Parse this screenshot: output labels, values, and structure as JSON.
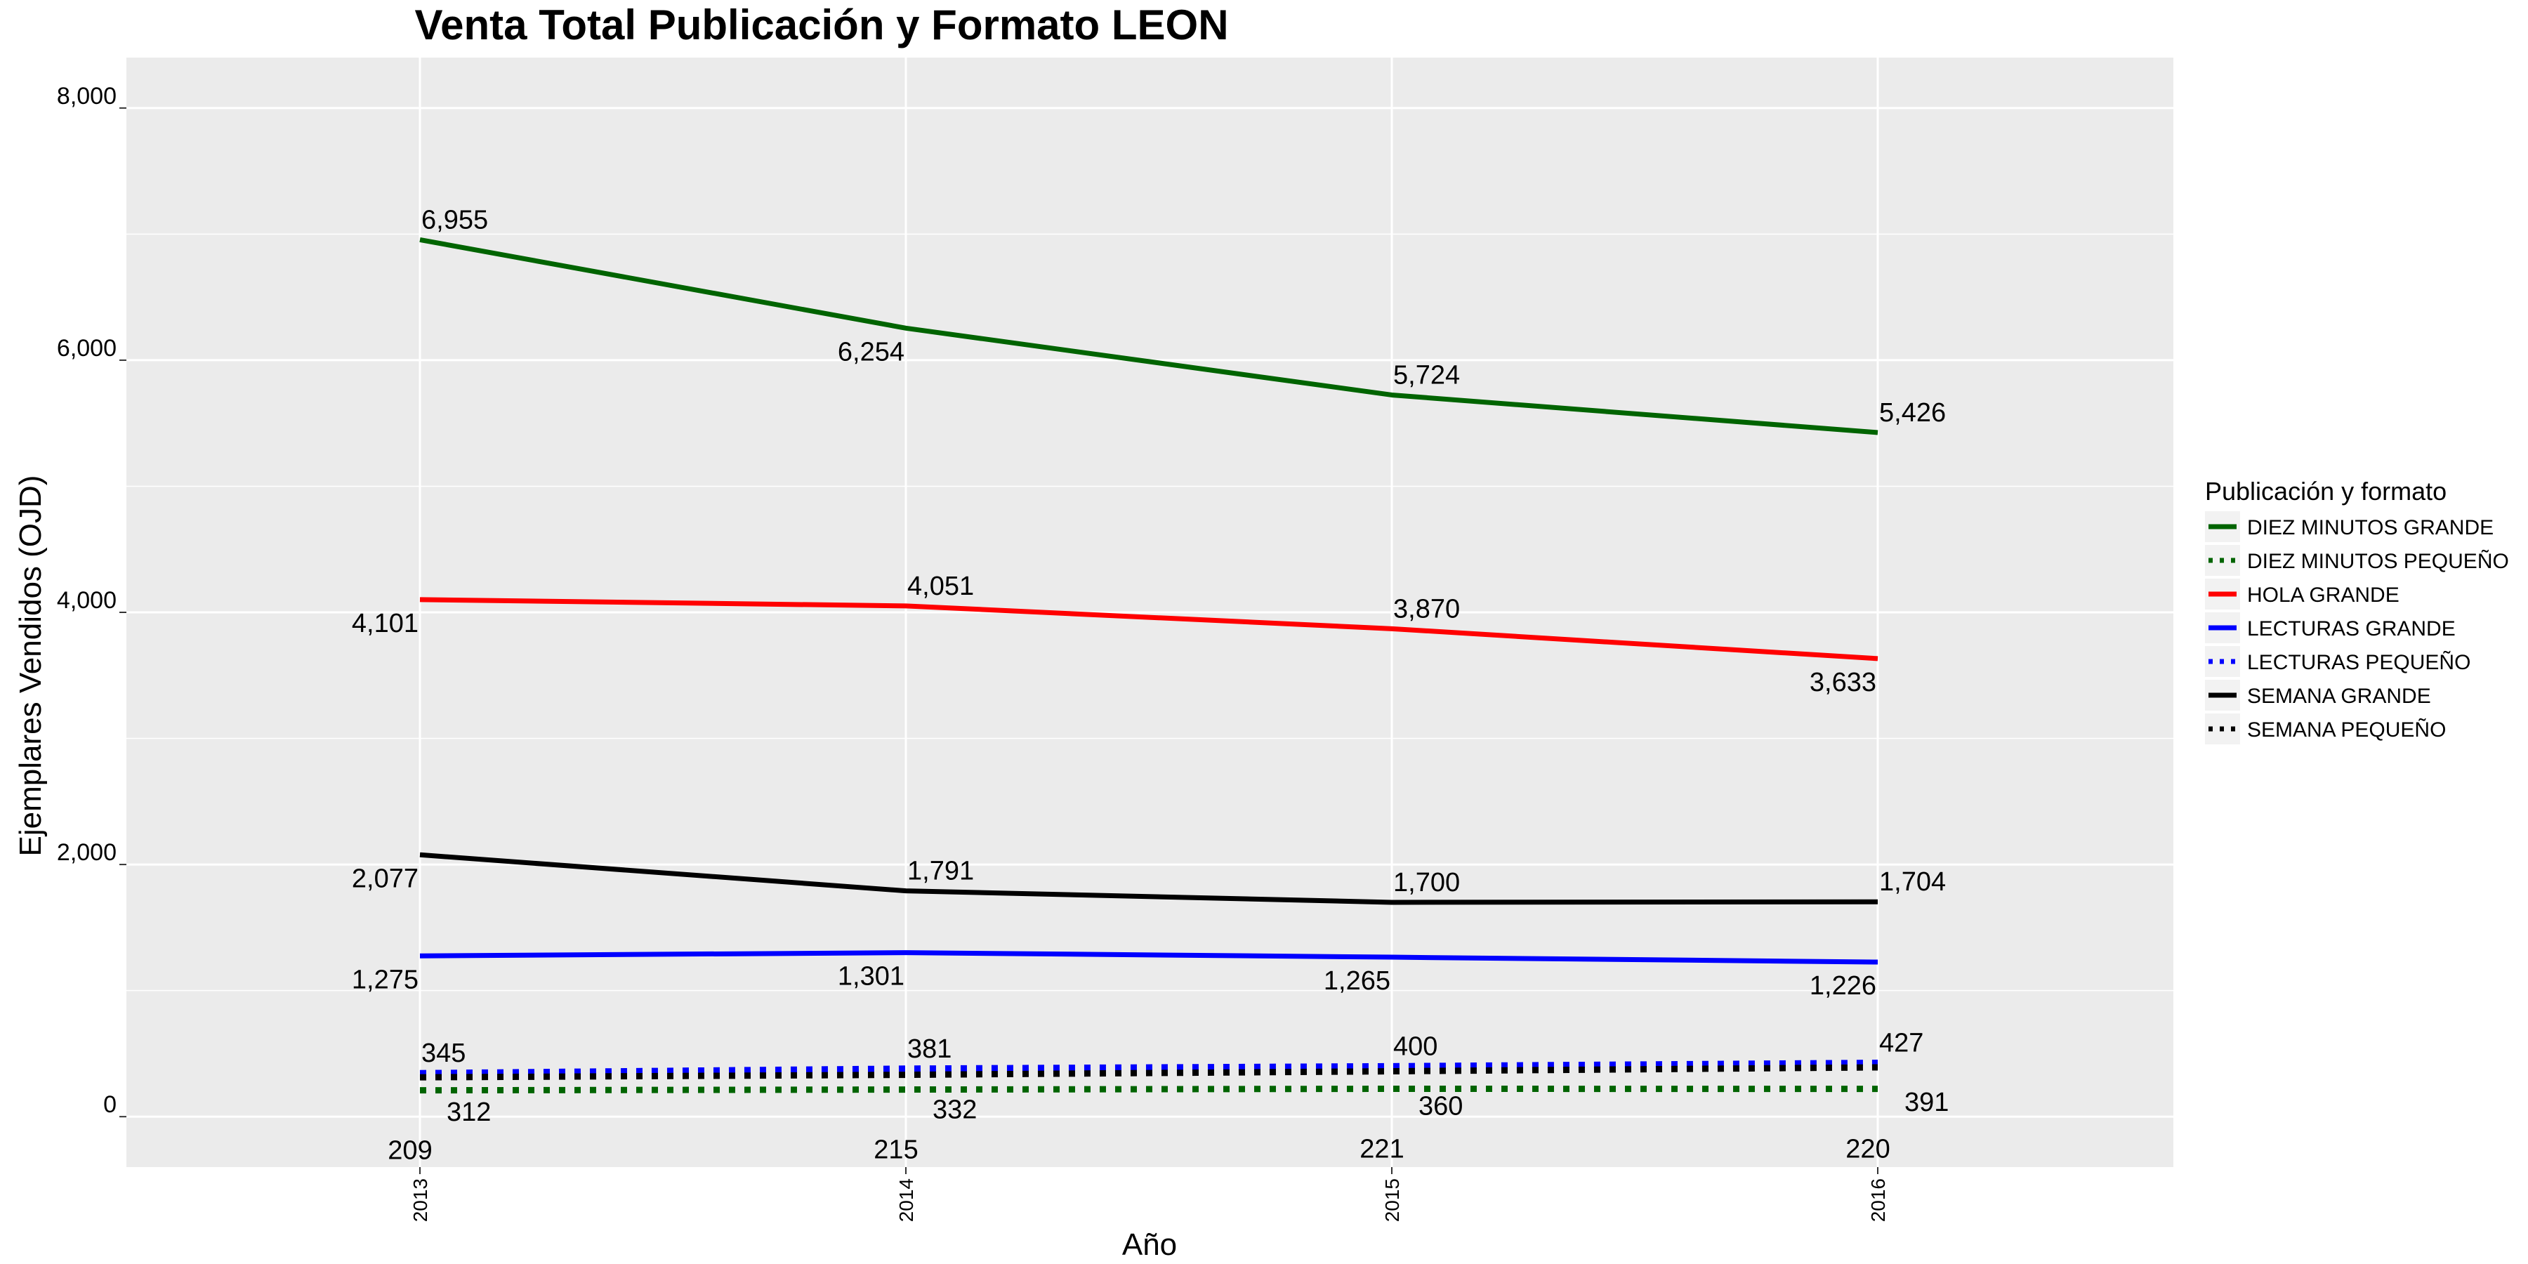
{
  "chart_data": {
    "type": "line",
    "title": "Venta Total Publicación y Formato  LEON",
    "xlabel": "Año",
    "ylabel": "Ejemplares Vendidos (OJD)",
    "x": [
      "2013",
      "2014",
      "2015",
      "2016"
    ],
    "ylim": [
      -400,
      8400
    ],
    "y_ticks": [
      0,
      2000,
      4000,
      6000,
      8000
    ],
    "y_tick_labels": [
      "0",
      "2,000",
      "4,000",
      "6,000",
      "8,000"
    ],
    "grid": true,
    "legend_title": "Publicación y formato",
    "legend_position": "right",
    "series": [
      {
        "name": "DIEZ MINUTOS GRANDE",
        "color": "#006400",
        "style": "solid",
        "values": [
          6955,
          6254,
          5724,
          5426
        ],
        "labels": [
          "6,955",
          "6,254",
          "5,724",
          "5,426"
        ],
        "label_side": [
          "above",
          "below",
          "above",
          "above"
        ]
      },
      {
        "name": "DIEZ MINUTOS PEQUEÑO",
        "color": "#006400",
        "style": "dotted",
        "values": [
          209,
          215,
          221,
          220
        ],
        "labels": [
          "209",
          "215",
          "221",
          "220"
        ],
        "label_side": [
          "below",
          "below",
          "below",
          "below"
        ]
      },
      {
        "name": "HOLA GRANDE",
        "color": "#ff0000",
        "style": "solid",
        "values": [
          4101,
          4051,
          3870,
          3633
        ],
        "labels": [
          "4,101",
          "4,051",
          "3,870",
          "3,633"
        ],
        "label_side": [
          "below",
          "above",
          "above",
          "below"
        ]
      },
      {
        "name": "LECTURAS GRANDE",
        "color": "#0000ff",
        "style": "solid",
        "values": [
          1275,
          1301,
          1265,
          1226
        ],
        "labels": [
          "1,275",
          "1,301",
          "1,265",
          "1,226"
        ],
        "label_side": [
          "below",
          "below",
          "below",
          "below"
        ]
      },
      {
        "name": "LECTURAS PEQUEÑO",
        "color": "#0000ff",
        "style": "dotted",
        "values": [
          345,
          381,
          400,
          427
        ],
        "labels": [
          "345",
          "381",
          "400",
          "427"
        ],
        "label_side": [
          "above",
          "above",
          "above",
          "above"
        ]
      },
      {
        "name": "SEMANA GRANDE",
        "color": "#000000",
        "style": "solid",
        "values": [
          2077,
          1791,
          1700,
          1704
        ],
        "labels": [
          "2,077",
          "1,791",
          "1,700",
          "1,704"
        ],
        "label_side": [
          "below",
          "above",
          "above",
          "above"
        ]
      },
      {
        "name": "SEMANA PEQUEÑO",
        "color": "#000000",
        "style": "dotted",
        "values": [
          312,
          332,
          360,
          391
        ],
        "labels": [
          "312",
          "332",
          "360",
          "391"
        ],
        "label_side": [
          "right",
          "right",
          "right",
          "right"
        ]
      }
    ],
    "colors": {
      "panel_bg": "#ebebeb",
      "grid": "#ffffff"
    }
  }
}
